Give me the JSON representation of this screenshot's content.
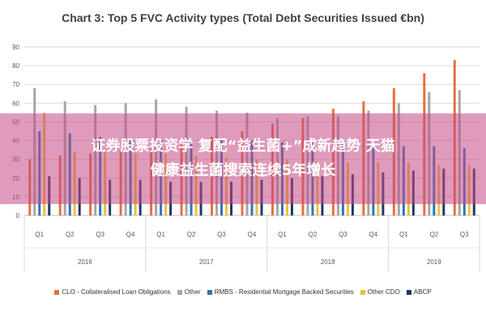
{
  "chart_data": {
    "type": "bar",
    "title": "Chart 3: Top 5 FVC Activity types (Total Debt Securities Issued €bn)",
    "ylim": [
      0,
      90
    ],
    "yticks": [
      0,
      10,
      20,
      30,
      40,
      50,
      60,
      70,
      80,
      90
    ],
    "grid": true,
    "legend_position": "bottom",
    "categories": [
      "Q1",
      "Q2",
      "Q3",
      "Q4",
      "Q1",
      "Q2",
      "Q3",
      "Q4",
      "Q1",
      "Q2",
      "Q3",
      "Q4",
      "Q1",
      "Q2",
      "Q3"
    ],
    "years": [
      {
        "label": "2016",
        "span": 4
      },
      {
        "label": "2017",
        "span": 4
      },
      {
        "label": "2018",
        "span": 4
      },
      {
        "label": "2019",
        "span": 3
      }
    ],
    "series": [
      {
        "name": "CLO - Collateralised Loan Obligations",
        "color": "#e8703a",
        "values": [
          30,
          32,
          33,
          35,
          36,
          38,
          42,
          45,
          49,
          52,
          57,
          61,
          68,
          76,
          83
        ]
      },
      {
        "name": "Other",
        "color": "#a6a6a6",
        "values": [
          68,
          61,
          59,
          60,
          62,
          58,
          56,
          55,
          52,
          53,
          53,
          56,
          60,
          66,
          67
        ]
      },
      {
        "name": "RMBS - Residential Mortgage Backed Securities",
        "color": "#2e75b6",
        "values": [
          45,
          44,
          42,
          41,
          40,
          40,
          40,
          40,
          39,
          39,
          38,
          37,
          37,
          37,
          36
        ]
      },
      {
        "name": "Other CDO",
        "color": "#f2c037",
        "values": [
          55,
          34,
          34,
          33,
          33,
          32,
          31,
          30,
          30,
          29,
          28,
          28,
          28,
          27,
          27
        ]
      },
      {
        "name": "ABCP",
        "color": "#203864",
        "values": [
          21,
          20,
          19,
          19,
          18,
          18,
          18,
          19,
          20,
          21,
          22,
          23,
          24,
          25,
          25
        ]
      }
    ]
  },
  "overlay": {
    "line1": "证券股票投资学 复配“益生菌+”成新趋势 天猫",
    "line2": "健康益生菌搜索连续5年增长"
  }
}
